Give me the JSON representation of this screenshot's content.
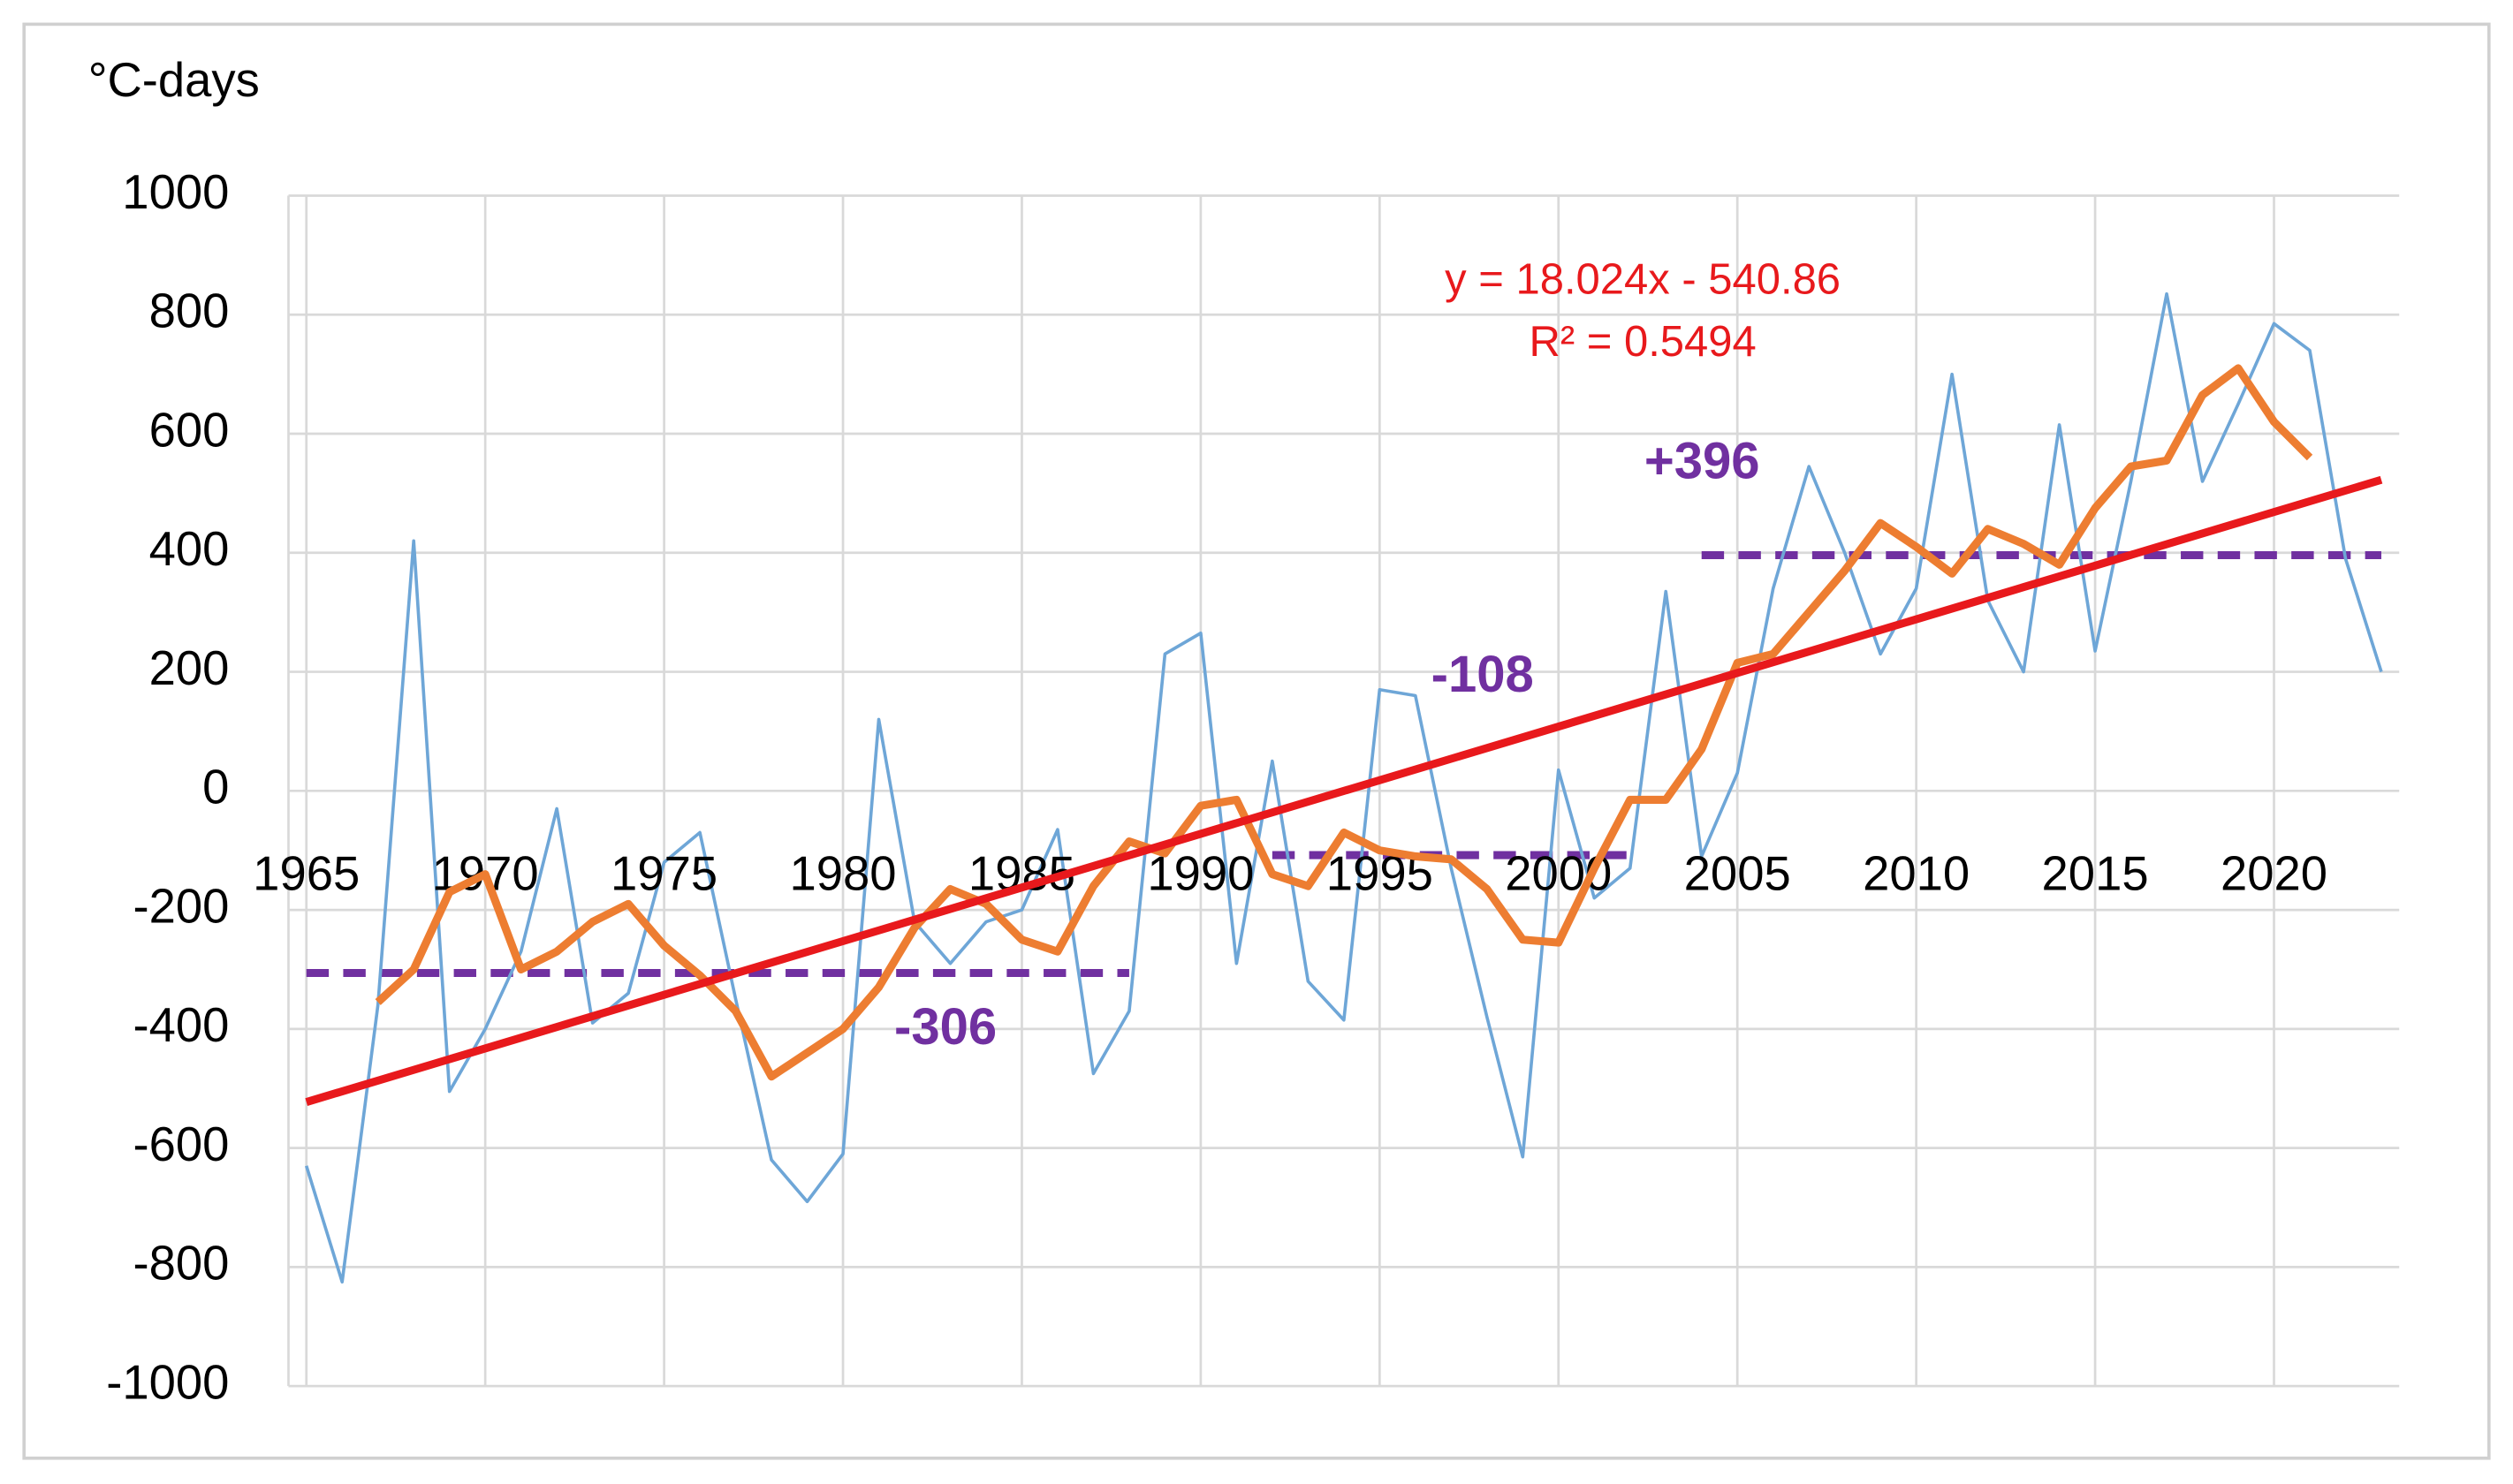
{
  "chart_data": {
    "type": "line",
    "y_label": "°C-days",
    "x": [
      1965,
      1966,
      1967,
      1968,
      1969,
      1970,
      1971,
      1972,
      1973,
      1974,
      1975,
      1976,
      1977,
      1978,
      1979,
      1980,
      1981,
      1982,
      1983,
      1984,
      1985,
      1986,
      1987,
      1988,
      1989,
      1990,
      1991,
      1992,
      1993,
      1994,
      1995,
      1996,
      1997,
      1998,
      1999,
      2000,
      2001,
      2002,
      2003,
      2004,
      2005,
      2006,
      2007,
      2008,
      2009,
      2010,
      2011,
      2012,
      2013,
      2014,
      2015,
      2016,
      2017,
      2018,
      2019,
      2020,
      2021,
      2022,
      2023
    ],
    "series": [
      {
        "color": "#6ea6d7",
        "values": [
          -630,
          -825,
          -360,
          420,
          -505,
          -400,
          -270,
          -30,
          -390,
          -340,
          -120,
          -70,
          -350,
          -620,
          -690,
          -610,
          120,
          -220,
          -290,
          -220,
          -200,
          -65,
          -475,
          -370,
          230,
          265,
          -290,
          50,
          -320,
          -385,
          170,
          160,
          -130,
          -380,
          -615,
          35,
          -180,
          -130,
          335,
          -110,
          30,
          340,
          545,
          400,
          230,
          340,
          700,
          320,
          200,
          615,
          235,
          520,
          835,
          520,
          650,
          785,
          740,
          390,
          200
        ]
      },
      {
        "color": "#ed7d31",
        "values": [
          null,
          null,
          -355,
          -300,
          -170,
          -140,
          -300,
          -270,
          -220,
          -190,
          -260,
          -310,
          -370,
          -480,
          -440,
          -400,
          -330,
          -230,
          -165,
          -190,
          -250,
          -270,
          -160,
          -85,
          -105,
          -25,
          -15,
          -140,
          -160,
          -70,
          -100,
          -110,
          -115,
          -165,
          -250,
          -255,
          -130,
          -15,
          -15,
          70,
          215,
          230,
          300,
          370,
          450,
          410,
          365,
          440,
          415,
          380,
          475,
          545,
          555,
          665,
          710,
          620,
          560,
          null,
          null
        ]
      }
    ],
    "trendline": {
      "color": "#e8191c",
      "slope": 18.024,
      "intercept": -540.86,
      "equation": "y = 18.024x - 540.86",
      "r_squared_label": "R² = 0.5494"
    },
    "period_means": {
      "color": "#7030a0",
      "starts": [
        1965,
        1992,
        2004
      ],
      "ends": [
        1988,
        2002,
        2023
      ],
      "values": [
        -306,
        -108,
        396
      ],
      "value_labels": [
        "-306",
        "-108",
        "+396"
      ]
    },
    "xlim": [
      1964.5,
      2023.5
    ],
    "xticks": [
      1965,
      1970,
      1975,
      1980,
      1985,
      1990,
      1995,
      2000,
      2005,
      2010,
      2015,
      2020
    ],
    "ylim": [
      -1000,
      1000
    ],
    "yticks": [
      -1000,
      -800,
      -600,
      -400,
      -200,
      0,
      200,
      400,
      600,
      800,
      1000
    ],
    "grid": true
  }
}
